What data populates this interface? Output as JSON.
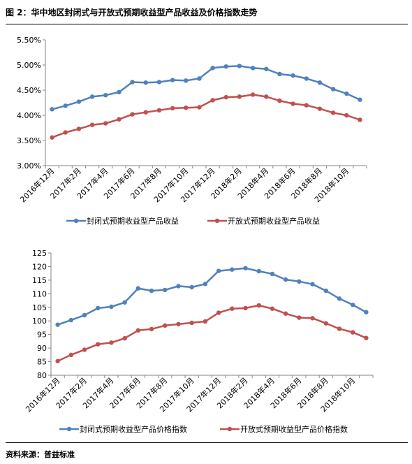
{
  "figure": {
    "title": "图 2：华中地区封闭式与开放式预期收益型产品收益及价格指数走势",
    "source": "资料来源：普益标准"
  },
  "chart_data": [
    {
      "type": "line",
      "categories": [
        "2016年12月",
        "2017年1月",
        "2017年2月",
        "2017年3月",
        "2017年4月",
        "2017年5月",
        "2017年6月",
        "2017年7月",
        "2017年8月",
        "2017年9月",
        "2017年10月",
        "2017年11月",
        "2017年12月",
        "2018年1月",
        "2018年2月",
        "2018年3月",
        "2018年4月",
        "2018年5月",
        "2018年6月",
        "2018年7月",
        "2018年8月",
        "2018年9月",
        "2018年10月",
        "2018年11月"
      ],
      "tick_labels": [
        "2016年12月",
        "2017年2月",
        "2017年4月",
        "2017年6月",
        "2017年8月",
        "2017年10月",
        "2017年12月",
        "2018年2月",
        "2018年4月",
        "2018年6月",
        "2018年8月",
        "2018年10月"
      ],
      "y_ticks": [
        "3.00%",
        "3.50%",
        "4.00%",
        "4.50%",
        "5.00%",
        "5.50%"
      ],
      "ylim": [
        3.0,
        5.5
      ],
      "series": [
        {
          "name": "封闭式预期收益型产品收益",
          "color": "#4F81BD",
          "values": [
            4.12,
            4.19,
            4.27,
            4.37,
            4.4,
            4.46,
            4.66,
            4.65,
            4.66,
            4.7,
            4.69,
            4.73,
            4.94,
            4.97,
            4.98,
            4.94,
            4.92,
            4.82,
            4.79,
            4.73,
            4.65,
            4.52,
            4.43,
            4.31
          ]
        },
        {
          "name": "开放式预期收益型产品收益",
          "color": "#C0504D",
          "values": [
            3.56,
            3.66,
            3.73,
            3.81,
            3.84,
            3.92,
            4.02,
            4.06,
            4.1,
            4.14,
            4.15,
            4.16,
            4.3,
            4.36,
            4.37,
            4.41,
            4.37,
            4.29,
            4.23,
            4.2,
            4.13,
            4.05,
            4.0,
            3.91
          ]
        }
      ],
      "legend_position": "bottom",
      "grid": false
    },
    {
      "type": "line",
      "categories": [
        "2016年12月",
        "2017年1月",
        "2017年2月",
        "2017年3月",
        "2017年4月",
        "2017年5月",
        "2017年6月",
        "2017年7月",
        "2017年8月",
        "2017年9月",
        "2017年10月",
        "2017年11月",
        "2017年12月",
        "2018年1月",
        "2018年2月",
        "2018年3月",
        "2018年4月",
        "2018年5月",
        "2018年6月",
        "2018年7月",
        "2018年8月",
        "2018年9月",
        "2018年10月",
        "2018年11月"
      ],
      "tick_labels": [
        "2016年12月",
        "2017年2月",
        "2017年4月",
        "2017年6月",
        "2017年8月",
        "2017年10月",
        "2017年12月",
        "2018年2月",
        "2018年4月",
        "2018年6月",
        "2018年8月",
        "2018年10月"
      ],
      "y_ticks": [
        "80",
        "85",
        "90",
        "95",
        "100",
        "105",
        "110",
        "115",
        "120",
        "125"
      ],
      "ylim": [
        80,
        125
      ],
      "series": [
        {
          "name": "封闭式预期收益型产品价格指数",
          "color": "#4F81BD",
          "values": [
            98.6,
            100.3,
            102.1,
            104.7,
            105.2,
            106.8,
            112.0,
            111.1,
            111.4,
            112.8,
            112.4,
            113.6,
            118.4,
            118.9,
            119.4,
            118.3,
            117.3,
            115.2,
            114.5,
            113.5,
            111.1,
            108.2,
            105.9,
            103.2
          ]
        },
        {
          "name": "开放式预期收益型产品价格指数",
          "color": "#C0504D",
          "values": [
            85.2,
            87.5,
            89.4,
            91.4,
            92.0,
            93.6,
            96.5,
            97.0,
            98.3,
            98.8,
            99.3,
            99.8,
            103.0,
            104.5,
            104.7,
            105.7,
            104.5,
            102.7,
            101.2,
            101.0,
            99.1,
            97.1,
            95.8,
            93.7
          ]
        }
      ],
      "legend_position": "bottom",
      "grid": false
    }
  ]
}
